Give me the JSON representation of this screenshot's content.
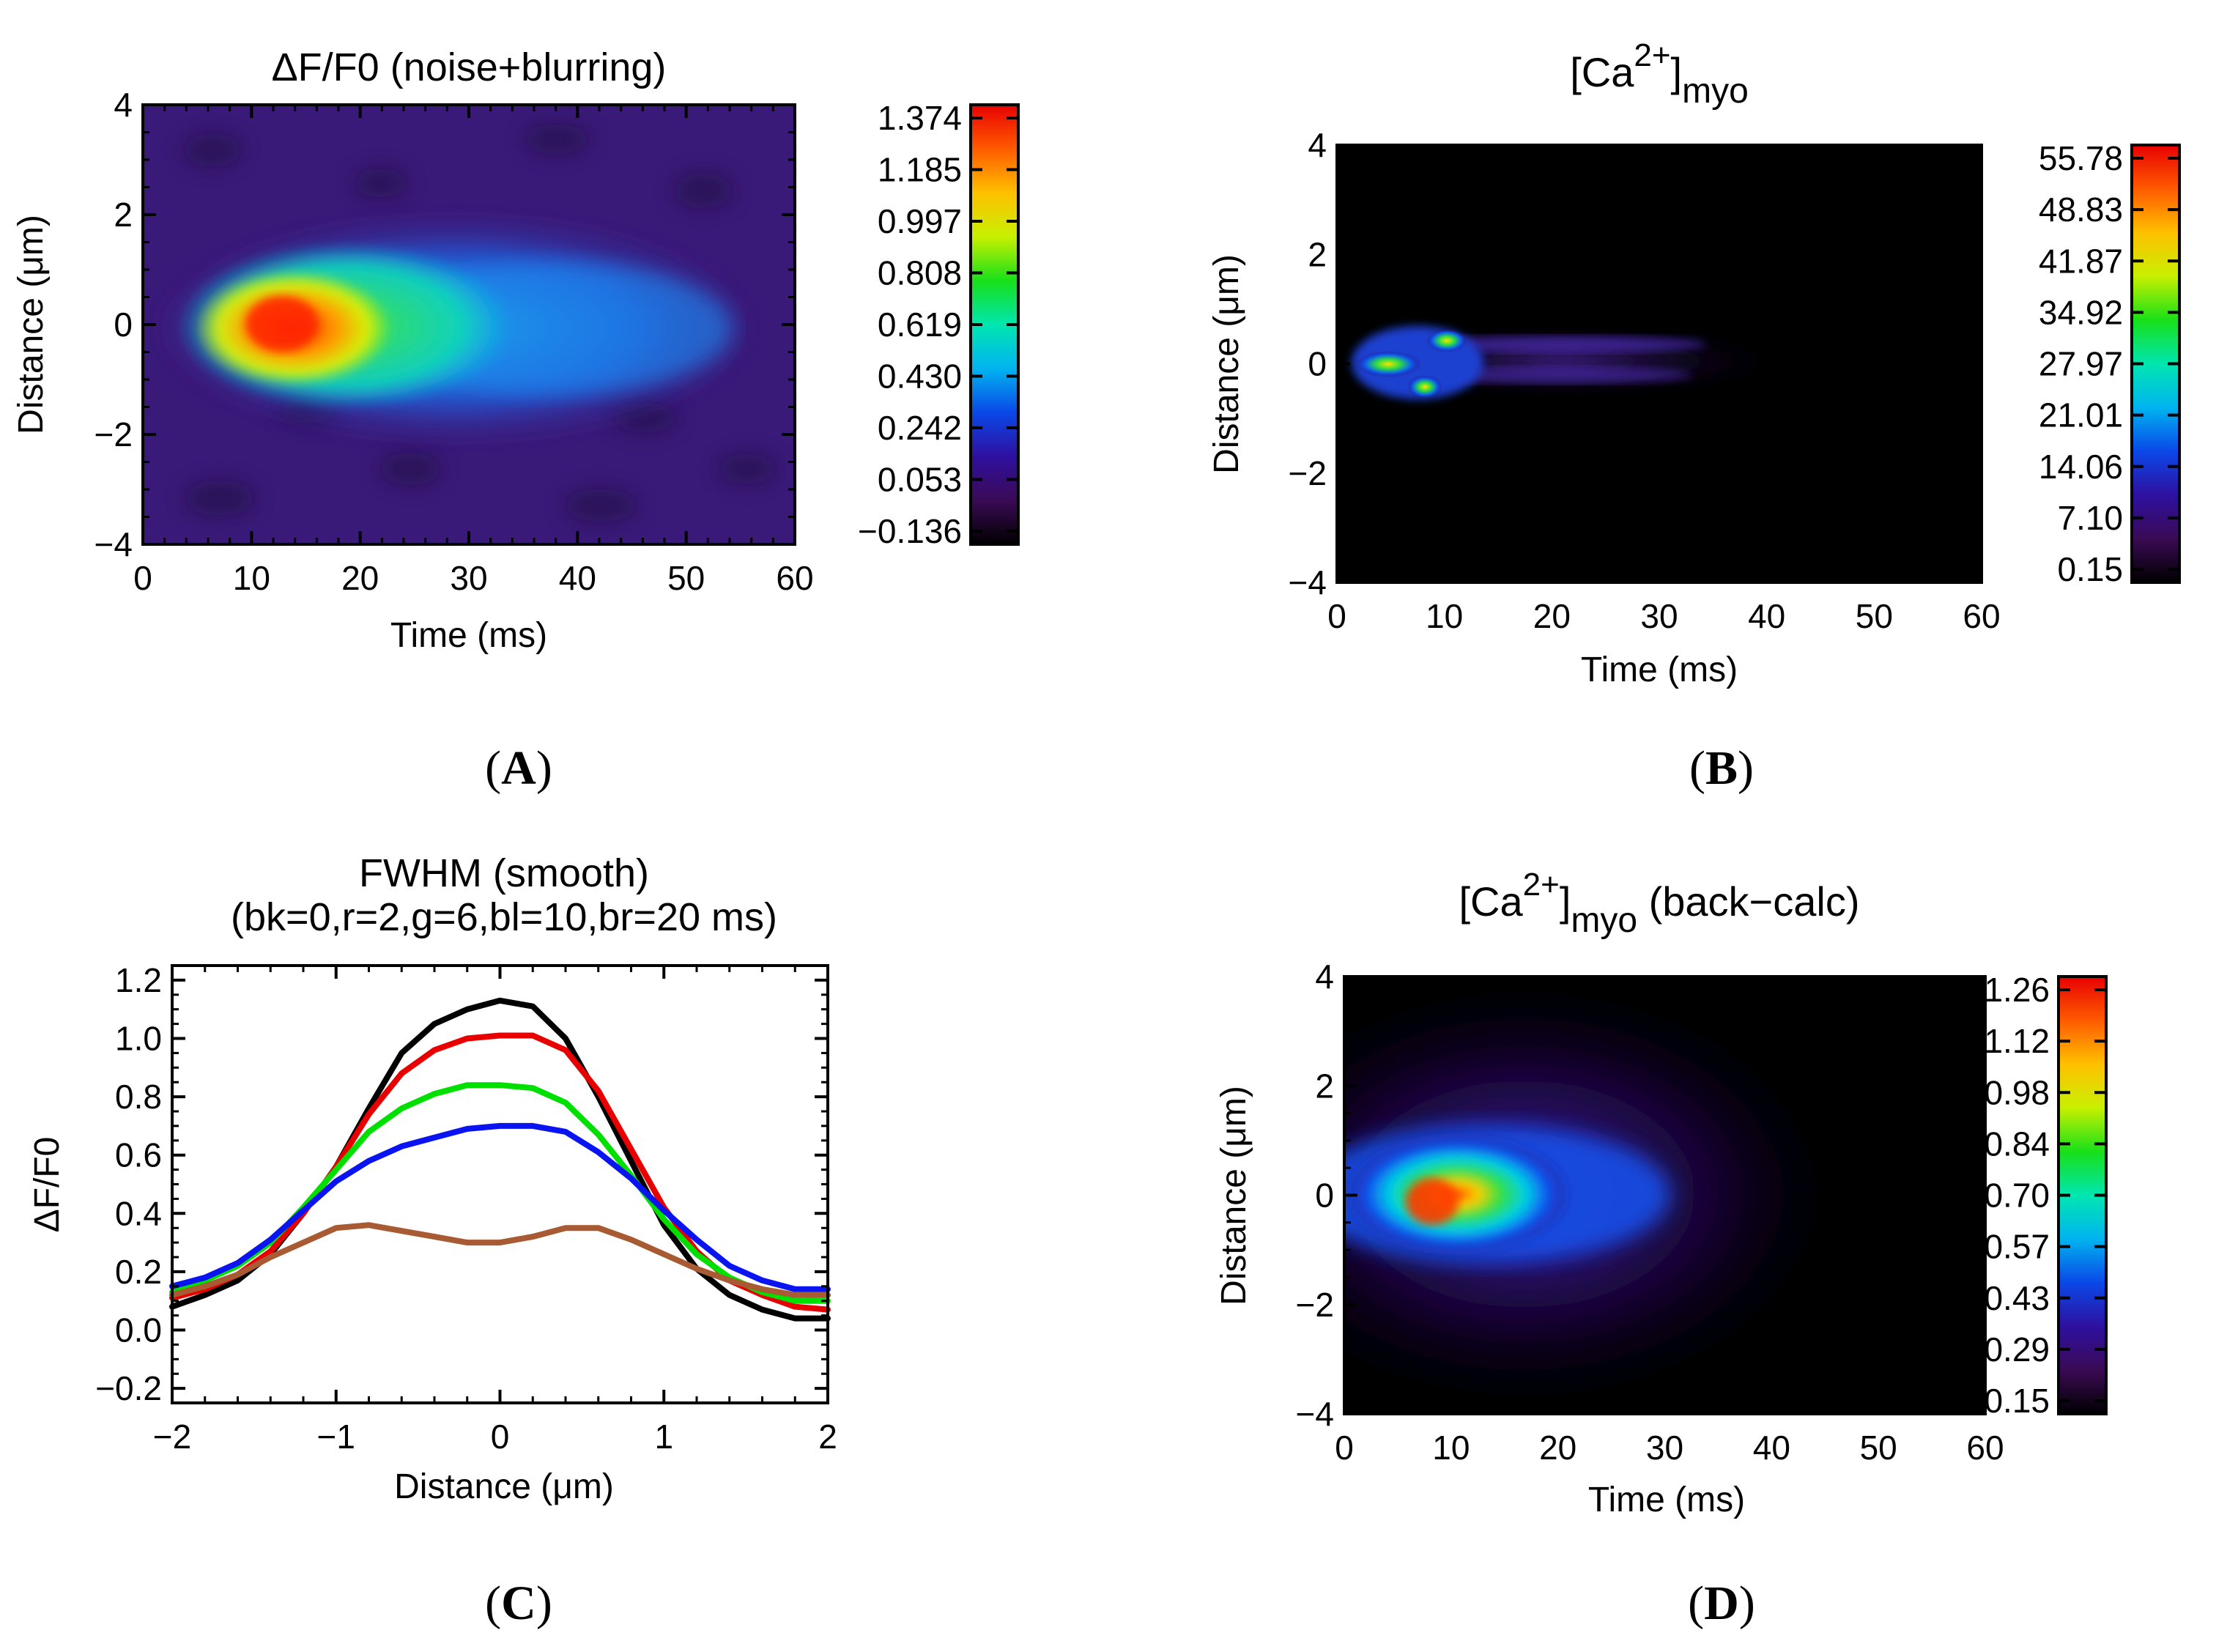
{
  "colormap": [
    "#000000",
    "#3b0a55",
    "#2e10a0",
    "#0a48e8",
    "#00b4f0",
    "#00e6b0",
    "#18e018",
    "#c8f000",
    "#ffc000",
    "#ff5a00",
    "#e80000"
  ],
  "panels": {
    "A": {
      "label_open": "(",
      "label_letter": "A",
      "label_close": ")"
    },
    "B": {
      "label_open": "(",
      "label_letter": "B",
      "label_close": ")"
    },
    "C": {
      "label_open": "(",
      "label_letter": "C",
      "label_close": ")"
    },
    "D": {
      "label_open": "(",
      "label_letter": "D",
      "label_close": ")"
    }
  },
  "chart_data": [
    {
      "id": "A",
      "type": "heatmap",
      "title": "ΔF/F0 (noise+blurring)",
      "xlabel": "Time (ms)",
      "ylabel": "Distance (μm)",
      "xlim": [
        0,
        60
      ],
      "ylim": [
        -4,
        4
      ],
      "xticks": [
        "0",
        "10",
        "20",
        "30",
        "40",
        "50",
        "60"
      ],
      "yticks": [
        "−4",
        "−2",
        "0",
        "2",
        "4"
      ],
      "colorbar_ticks": [
        "1.374",
        "1.185",
        "0.997",
        "0.808",
        "0.619",
        "0.430",
        "0.242",
        "0.053",
        "−0.136"
      ],
      "peak": {
        "time_ms": 12,
        "distance_um": 0,
        "value": 1.374
      },
      "min_value": -0.136
    },
    {
      "id": "B",
      "type": "heatmap",
      "title": "[Ca2+]myo",
      "xlabel": "Time (ms)",
      "ylabel": "Distance (μm)",
      "xlim": [
        0,
        60
      ],
      "ylim": [
        -4,
        4
      ],
      "xticks": [
        "0",
        "10",
        "20",
        "30",
        "40",
        "50",
        "60"
      ],
      "yticks": [
        "−4",
        "−2",
        "0",
        "2",
        "4"
      ],
      "colorbar_ticks": [
        "55.78",
        "48.83",
        "41.87",
        "34.92",
        "27.97",
        "21.01",
        "14.06",
        "7.10",
        "0.15"
      ],
      "peak": {
        "time_ms": 4,
        "distance_um": 0,
        "value": 55.78
      },
      "min_value": 0.15
    },
    {
      "id": "C",
      "type": "line",
      "title": "FWHM (smooth)",
      "subtitle": "(bk=0,r=2,g=6,bl=10,br=20 ms)",
      "xlabel": "Distance (μm)",
      "ylabel": "ΔF/F0",
      "xlim": [
        -2,
        2
      ],
      "ylim": [
        -0.25,
        1.25
      ],
      "xticks": [
        "−2",
        "−1",
        "0",
        "1",
        "2"
      ],
      "yticks": [
        "−0.2",
        "0.0",
        "0.2",
        "0.4",
        "0.6",
        "0.8",
        "1.0",
        "1.2"
      ],
      "x": [
        -2.0,
        -1.8,
        -1.6,
        -1.4,
        -1.2,
        -1.0,
        -0.8,
        -0.6,
        -0.4,
        -0.2,
        0.0,
        0.2,
        0.4,
        0.6,
        0.8,
        1.0,
        1.2,
        1.4,
        1.6,
        1.8,
        2.0
      ],
      "series": [
        {
          "name": "black",
          "color": "#000000",
          "values": [
            0.08,
            0.12,
            0.17,
            0.26,
            0.4,
            0.56,
            0.76,
            0.95,
            1.05,
            1.1,
            1.13,
            1.11,
            1.0,
            0.8,
            0.58,
            0.36,
            0.21,
            0.12,
            0.07,
            0.04,
            0.04
          ]
        },
        {
          "name": "red",
          "color": "#e80000",
          "values": [
            0.11,
            0.14,
            0.19,
            0.27,
            0.4,
            0.56,
            0.74,
            0.88,
            0.96,
            1.0,
            1.01,
            1.01,
            0.96,
            0.82,
            0.62,
            0.42,
            0.27,
            0.17,
            0.12,
            0.08,
            0.07
          ]
        },
        {
          "name": "green",
          "color": "#00e000",
          "values": [
            0.13,
            0.17,
            0.22,
            0.3,
            0.42,
            0.55,
            0.68,
            0.76,
            0.81,
            0.84,
            0.84,
            0.83,
            0.78,
            0.67,
            0.53,
            0.38,
            0.26,
            0.18,
            0.13,
            0.1,
            0.1
          ]
        },
        {
          "name": "blue",
          "color": "#0a14f0",
          "values": [
            0.15,
            0.18,
            0.23,
            0.31,
            0.41,
            0.51,
            0.58,
            0.63,
            0.66,
            0.69,
            0.7,
            0.7,
            0.68,
            0.61,
            0.52,
            0.41,
            0.31,
            0.22,
            0.17,
            0.14,
            0.14
          ]
        },
        {
          "name": "brown",
          "color": "#a85a32",
          "values": [
            0.12,
            0.15,
            0.19,
            0.25,
            0.3,
            0.35,
            0.36,
            0.34,
            0.32,
            0.3,
            0.3,
            0.32,
            0.35,
            0.35,
            0.31,
            0.26,
            0.21,
            0.17,
            0.14,
            0.12,
            0.12
          ]
        }
      ]
    },
    {
      "id": "D",
      "type": "heatmap",
      "title": "[Ca2+]myo (back−calc)",
      "xlabel": "Time (ms)",
      "ylabel": "Distance (μm)",
      "xlim": [
        0,
        60
      ],
      "ylim": [
        -4,
        4
      ],
      "xticks": [
        "0",
        "10",
        "20",
        "30",
        "40",
        "50",
        "60"
      ],
      "yticks": [
        "−4",
        "−2",
        "0",
        "2",
        "4"
      ],
      "colorbar_ticks": [
        "1.26",
        "1.12",
        "0.98",
        "0.84",
        "0.70",
        "0.57",
        "0.43",
        "0.29",
        "0.15"
      ],
      "peak": {
        "time_ms": 7,
        "distance_um": 0,
        "value": 1.26
      },
      "min_value": 0.15
    }
  ]
}
